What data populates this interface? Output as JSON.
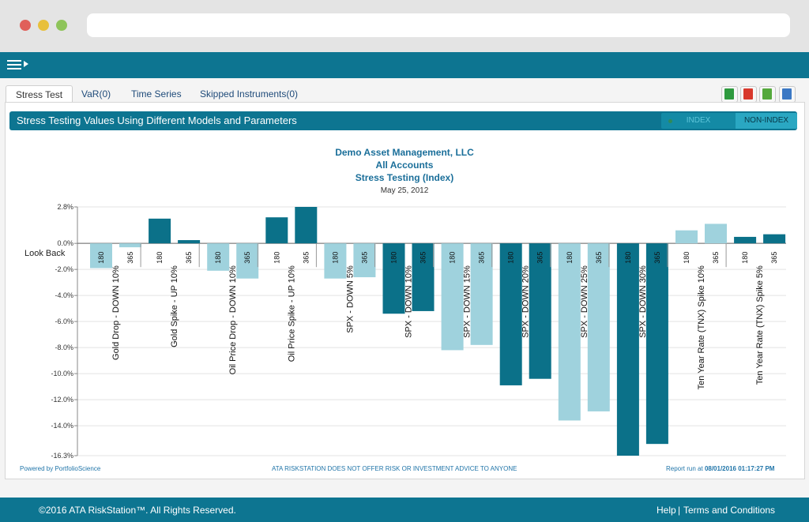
{
  "tabs": [
    {
      "label": "Stress Test"
    },
    {
      "label": "VaR(0)"
    },
    {
      "label": "Time Series"
    },
    {
      "label": "Skipped Instruments(0)"
    }
  ],
  "export_icons": [
    "excel-icon",
    "pdf-icon",
    "csv-icon",
    "chart-export-icon"
  ],
  "panel": {
    "title": "Stress Testing Values Using Different Models and Parameters",
    "toggle": {
      "index_label": "INDEX",
      "nonindex_label": "NON-INDEX",
      "selected": "INDEX"
    }
  },
  "chart_data": {
    "type": "bar",
    "title_lines": [
      "Demo Asset Management, LLC",
      "All Accounts",
      "Stress Testing (Index)"
    ],
    "date": "May 25, 2012",
    "look_back_label": "Look Back",
    "y_ticks": [
      "2.8%",
      "0.0%",
      "-2.0%",
      "-4.0%",
      "-6.0%",
      "-8.0%",
      "-10.0%",
      "-12.0%",
      "-14.0%",
      "-16.3%"
    ],
    "ylim": [
      -16.3,
      2.8
    ],
    "grid": true,
    "groups": [
      {
        "name": "Gold Drop - DOWN 10%",
        "bars": [
          {
            "label": "180",
            "value": -1.9
          },
          {
            "label": "365",
            "value": -0.3
          }
        ],
        "color": "#9fd2dd"
      },
      {
        "name": "Gold Spike - UP 10%",
        "bars": [
          {
            "label": "180",
            "value": 1.9
          },
          {
            "label": "365",
            "value": 0.25
          }
        ],
        "color": "#0b7189"
      },
      {
        "name": "Oil Price Drop - DOWN 10%",
        "bars": [
          {
            "label": "180",
            "value": -2.1
          },
          {
            "label": "365",
            "value": -2.7
          }
        ],
        "color": "#9fd2dd"
      },
      {
        "name": "Oil Price Spike - UP 10%",
        "bars": [
          {
            "label": "180",
            "value": 2.0
          },
          {
            "label": "365",
            "value": 2.8
          }
        ],
        "color": "#0b7189"
      },
      {
        "name": "SPX - DOWN 5%",
        "bars": [
          {
            "label": "180",
            "value": -2.7
          },
          {
            "label": "365",
            "value": -2.6
          }
        ],
        "color": "#9fd2dd"
      },
      {
        "name": "SPX - DOWN 10%",
        "bars": [
          {
            "label": "180",
            "value": -5.4
          },
          {
            "label": "365",
            "value": -5.2
          }
        ],
        "color": "#0b7189"
      },
      {
        "name": "SPX - DOWN 15%",
        "bars": [
          {
            "label": "180",
            "value": -8.2
          },
          {
            "label": "365",
            "value": -7.8
          }
        ],
        "color": "#9fd2dd"
      },
      {
        "name": "SPX - DOWN 20%",
        "bars": [
          {
            "label": "180",
            "value": -10.9
          },
          {
            "label": "365",
            "value": -10.4
          }
        ],
        "color": "#0b7189"
      },
      {
        "name": "SPX - DOWN 25%",
        "bars": [
          {
            "label": "180",
            "value": -13.6
          },
          {
            "label": "365",
            "value": -12.9
          }
        ],
        "color": "#9fd2dd"
      },
      {
        "name": "SPX - DOWN 30%",
        "bars": [
          {
            "label": "180",
            "value": -16.3
          },
          {
            "label": "365",
            "value": -15.4
          }
        ],
        "color": "#0b7189"
      },
      {
        "name": "Ten Year Rate (TNX) Spike 10%",
        "bars": [
          {
            "label": "180",
            "value": 1.0
          },
          {
            "label": "365",
            "value": 1.5
          }
        ],
        "color": "#9fd2dd"
      },
      {
        "name": "Ten Year Rate (TNX) Spike 5%",
        "bars": [
          {
            "label": "180",
            "value": 0.5
          },
          {
            "label": "365",
            "value": 0.7
          }
        ],
        "color": "#0b7189"
      }
    ],
    "footer_left": "Powered by PortfolioScience",
    "footer_center": "ATA RISKSTATION DOES NOT OFFER RISK OR INVESTMENT ADVICE TO ANYONE",
    "footer_right_prefix": "Report run at",
    "footer_right_value": "08/01/2016 01:17:27 PM"
  },
  "footer": {
    "copyright": "©2016 ATA RiskStation™. All Rights Reserved.",
    "help": "Help",
    "separator": "|",
    "terms": "Terms and Conditions"
  }
}
